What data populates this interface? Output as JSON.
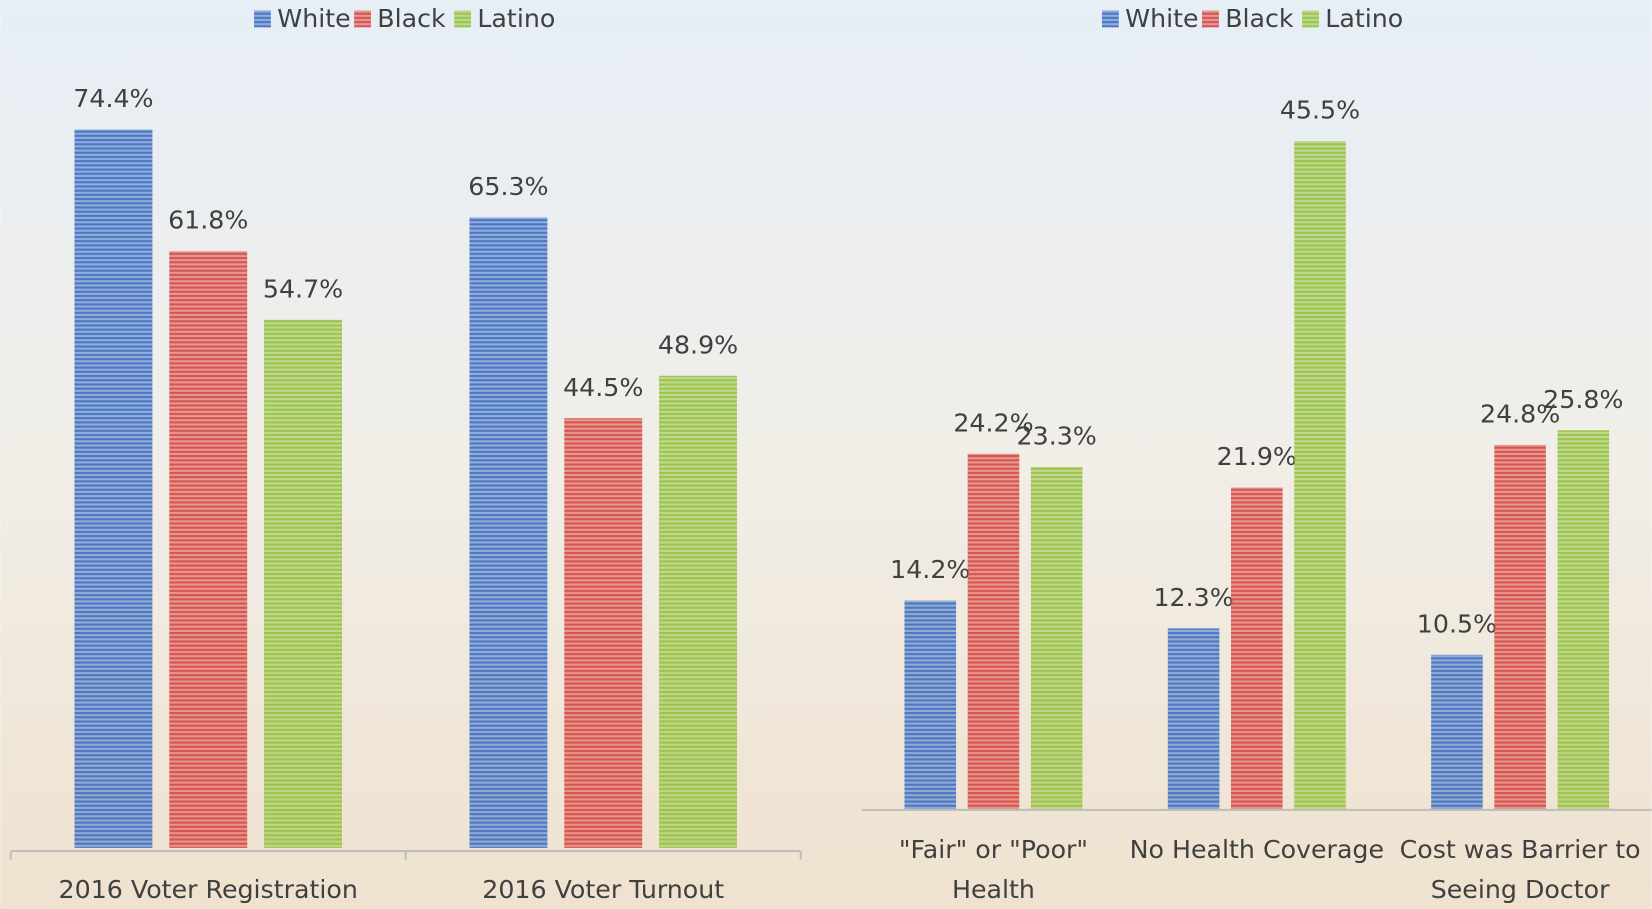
{
  "chart_data": [
    {
      "type": "bar",
      "categories": [
        "2016 Voter Registration",
        "2016 Voter Turnout"
      ],
      "series": [
        {
          "name": "White",
          "color": "#4a78c6",
          "values": [
            74.4,
            65.3
          ],
          "value_labels": [
            "74.4%",
            "65.3%"
          ]
        },
        {
          "name": "Black",
          "color": "#d9534f",
          "values": [
            61.8,
            44.5
          ],
          "value_labels": [
            "61.8%",
            "44.5%"
          ]
        },
        {
          "name": "Latino",
          "color": "#9bc54a",
          "values": [
            54.7,
            48.9
          ],
          "value_labels": [
            "54.7%",
            "48.9%"
          ]
        }
      ],
      "legend": "top"
    },
    {
      "type": "bar",
      "categories": [
        "\"Fair\" or \"Poor\"\nHealth",
        "No Health Coverage",
        "Cost was Barrier to\nSeeing Doctor"
      ],
      "series": [
        {
          "name": "White",
          "color": "#4a78c6",
          "values": [
            14.2,
            12.3,
            10.5
          ],
          "value_labels": [
            "14.2%",
            "12.3%",
            "10.5%"
          ]
        },
        {
          "name": "Black",
          "color": "#d9534f",
          "values": [
            24.2,
            21.9,
            24.8
          ],
          "value_labels": [
            "24.2%",
            "21.9%",
            "24.8%"
          ]
        },
        {
          "name": "Latino",
          "color": "#9bc54a",
          "values": [
            23.3,
            45.5,
            25.8
          ],
          "value_labels": [
            "23.3%",
            "45.5%",
            "25.8%"
          ]
        }
      ],
      "legend": "top"
    }
  ]
}
